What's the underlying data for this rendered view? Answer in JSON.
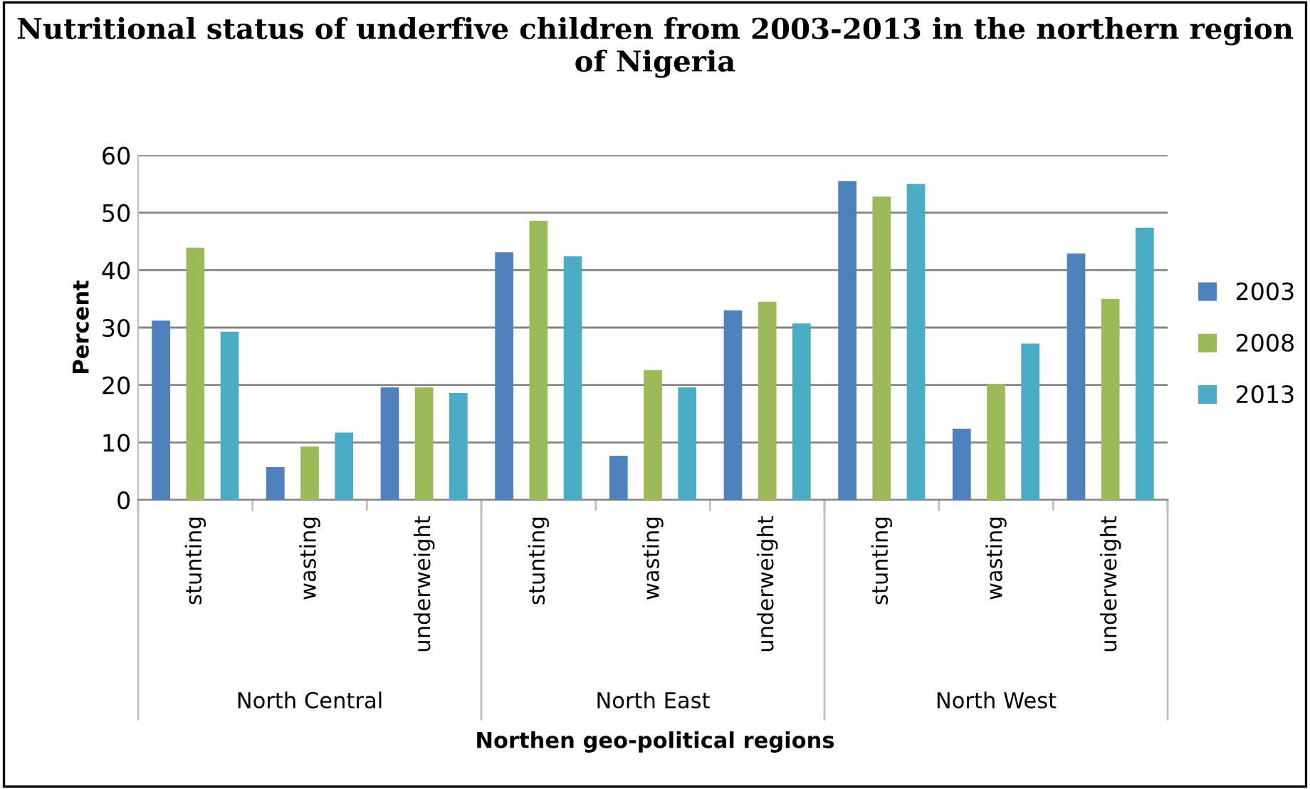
{
  "chart_data": {
    "type": "bar",
    "title": "Nutritional status of underfive children from 2003-2013 in the northern region of Nigeria",
    "xlabel": "Northen geo-political regions",
    "ylabel": "Percent",
    "categories": [
      "stunting",
      "wasting",
      "underweight",
      "stunting",
      "wasting",
      "underweight",
      "stunting",
      "wasting",
      "underweight"
    ],
    "annotations": [
      "North Central",
      "North East",
      "North West"
    ],
    "series": [
      {
        "name": "2003",
        "color": "#4f81bd",
        "values": [
          31.2,
          5.7,
          19.6,
          43.1,
          7.7,
          33.0,
          55.5,
          12.4,
          42.9
        ]
      },
      {
        "name": "2008",
        "color": "#9bbb59",
        "values": [
          43.9,
          9.3,
          19.6,
          48.6,
          22.6,
          34.5,
          52.8,
          20.2,
          35.0
        ]
      },
      {
        "name": "2013",
        "color": "#4bacc6",
        "values": [
          29.3,
          11.7,
          18.6,
          42.4,
          19.6,
          30.7,
          55.0,
          27.2,
          47.4
        ]
      }
    ],
    "ylim": [
      0,
      60
    ],
    "yticks": [
      0,
      10,
      20,
      30,
      40,
      50,
      60
    ],
    "grid": "y",
    "legend": "right"
  }
}
